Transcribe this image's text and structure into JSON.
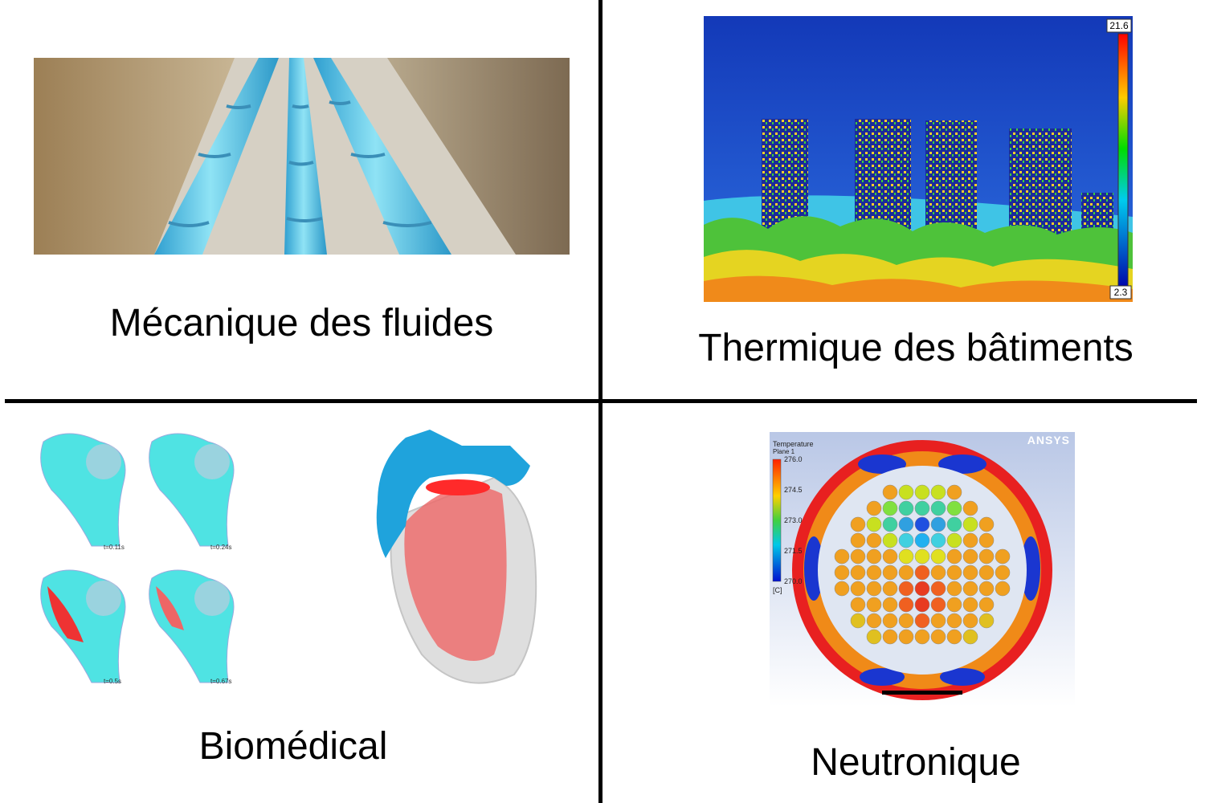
{
  "quadrants": {
    "top_left": {
      "caption": "Mécanique des fluides"
    },
    "top_right": {
      "caption": "Thermique des bâtiments",
      "scale_max": "21.6",
      "scale_min": "2.3"
    },
    "bottom_left": {
      "caption": "Biomédical",
      "time_labels": [
        "t=0.11s",
        "t=0.24s",
        "t=0.5s",
        "t=0.67s"
      ]
    },
    "bottom_right": {
      "caption": "Neutronique",
      "legend_title": "Temperature",
      "legend_subtitle": "Plane 1",
      "legend_ticks": [
        "276.0",
        "274.5",
        "273.0",
        "271.5",
        "270.0"
      ],
      "legend_unit": "[C]",
      "brand": "ANSYS"
    }
  },
  "colors": {
    "divider": "#000000",
    "pipe": "#4ec3e6",
    "soil": "#b8a88a",
    "thermal_bg": "#1a4fd0",
    "heart_red": "#ee5555",
    "heart_blue": "#1a9ad4"
  }
}
